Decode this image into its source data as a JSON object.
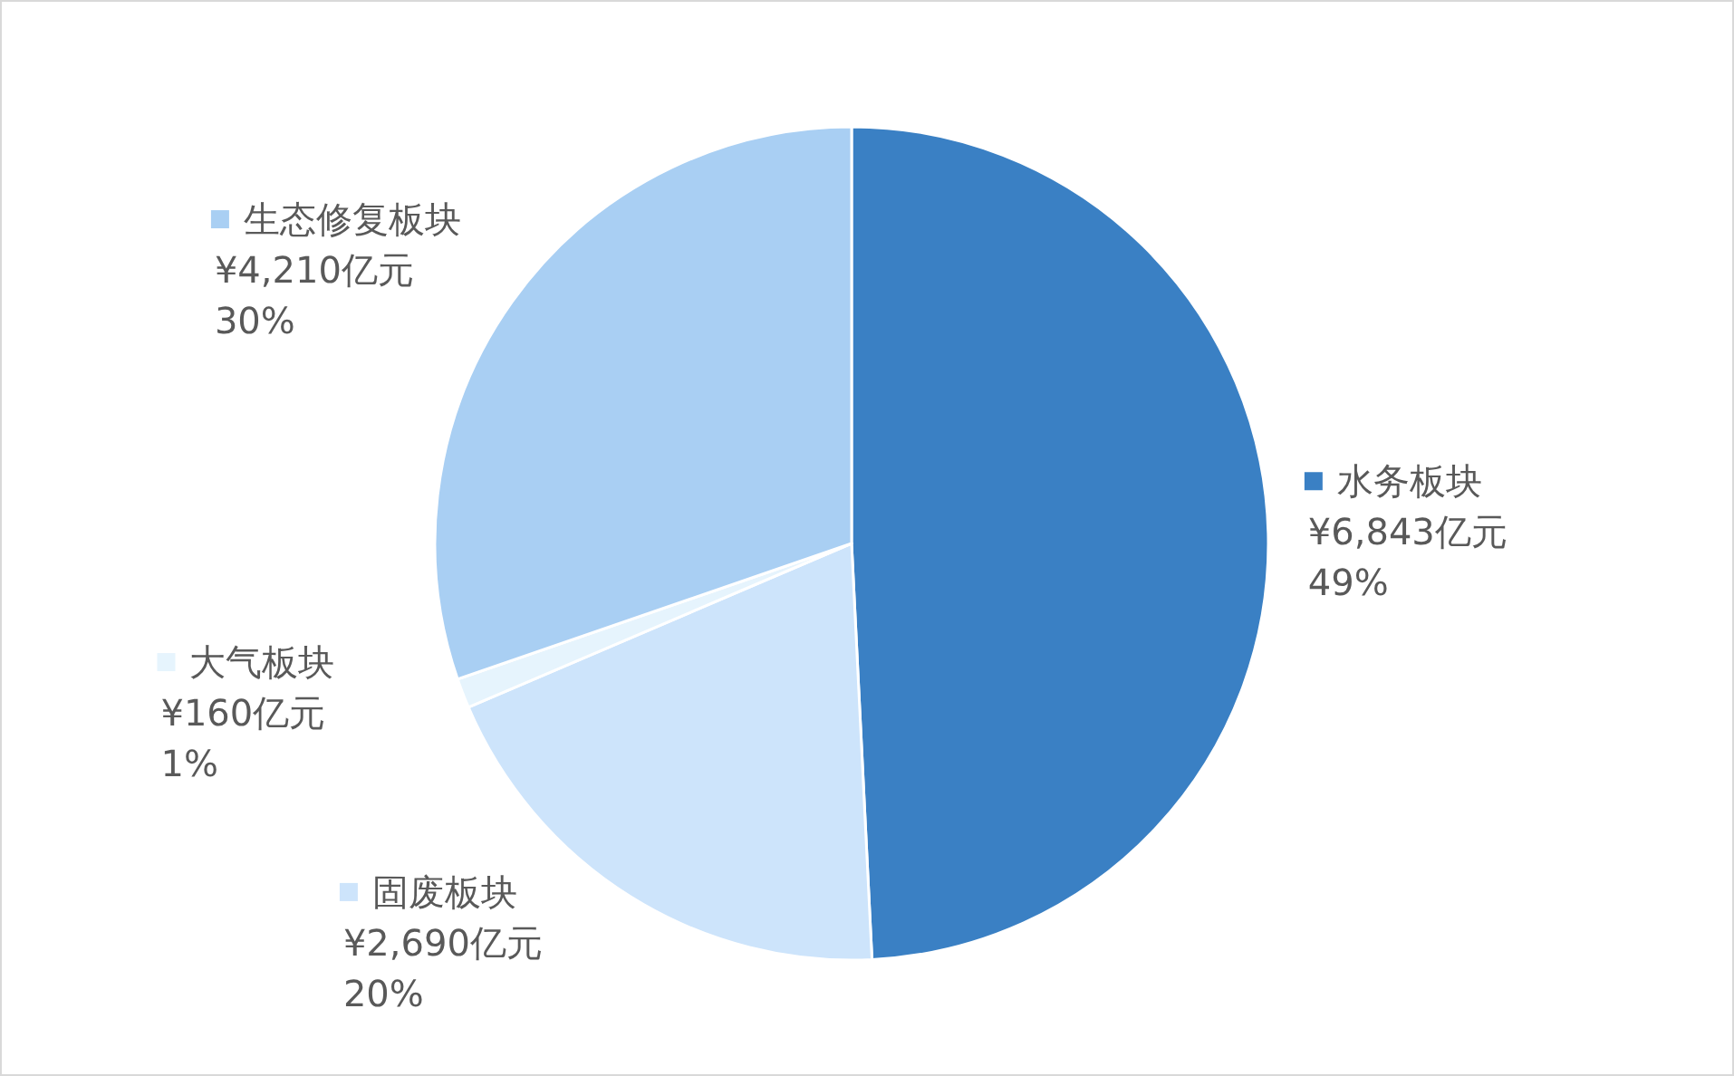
{
  "chart_data": {
    "type": "pie",
    "categories": [
      "水务板块",
      "固废板块",
      "大气板块",
      "生态修复板块"
    ],
    "values": [
      6843,
      2690,
      160,
      4210
    ],
    "colors": [
      "#3a80c4",
      "#cde4fb",
      "#e6f4fd",
      "#a9cff3"
    ],
    "value_labels": [
      "¥6,843亿元\n49%",
      "¥2,690亿元\n20%",
      "¥160亿元\n1%",
      "¥4,210亿元\n30%"
    ],
    "legend": "left"
  }
}
